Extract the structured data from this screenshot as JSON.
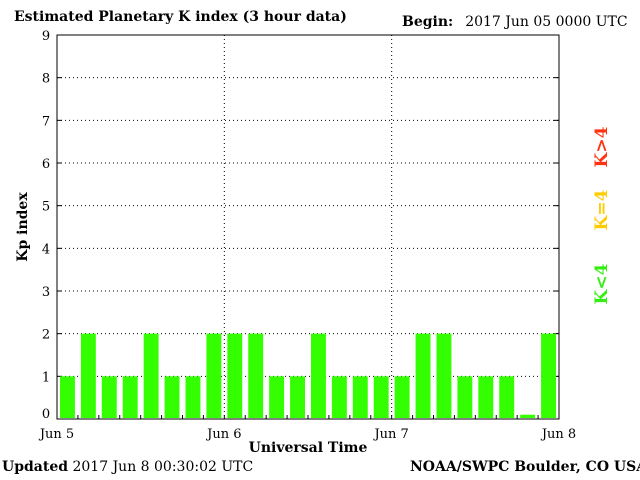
{
  "header": {
    "title": "Estimated Planetary K index (3 hour data)",
    "begin_label": "Begin:",
    "begin_value": "2017 Jun 05 0000 UTC"
  },
  "footer": {
    "updated_label": "Updated",
    "updated_value": "2017 Jun  8 00:30:02 UTC",
    "source": "NOAA/SWPC Boulder, CO USA"
  },
  "legend": {
    "items": [
      {
        "label": "K<4",
        "color": "#33ee11"
      },
      {
        "label": "K=4",
        "color": "#ffcc00"
      },
      {
        "label": "K>4",
        "color": "#ff3311"
      }
    ]
  },
  "chart_data": {
    "type": "bar",
    "title": "Estimated Planetary K index (3 hour data)",
    "xlabel": "Universal Time",
    "ylabel": "Kp index",
    "ylim": [
      0,
      9
    ],
    "yticks": [
      0,
      1,
      2,
      3,
      4,
      5,
      6,
      7,
      8,
      9
    ],
    "xticks": [
      "Jun 5",
      "Jun 6",
      "Jun 7",
      "Jun 8"
    ],
    "bar_color": "#33ff00",
    "grid": "dotted",
    "values": [
      1,
      2,
      1,
      1,
      2,
      1,
      1,
      2,
      2,
      2,
      1,
      1,
      2,
      1,
      1,
      1,
      1,
      2,
      2,
      1,
      1,
      1,
      0.1,
      2
    ]
  }
}
